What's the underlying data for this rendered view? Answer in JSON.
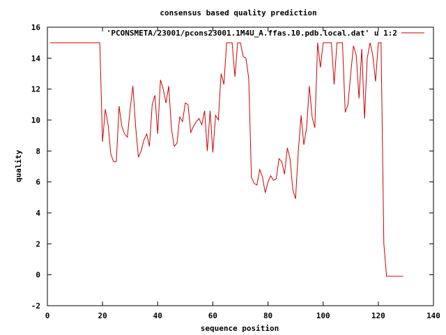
{
  "chart_data": {
    "type": "line",
    "title": "consensus based quality prediction",
    "xlabel": "sequence position",
    "ylabel": "quality",
    "xlim": [
      0,
      140
    ],
    "ylim": [
      -2,
      16
    ],
    "xticks": [
      0,
      20,
      40,
      60,
      80,
      100,
      120,
      140
    ],
    "yticks": [
      -2,
      0,
      2,
      4,
      6,
      8,
      10,
      12,
      14,
      16
    ],
    "grid": false,
    "legend": "top-right",
    "series": [
      {
        "name": "'PCONSMETA/23001/pcons23001.1M4U_A.ffas.10.pdb.local.dat' u 1:2",
        "color": "#cc0000",
        "x": [
          1,
          19,
          20,
          21,
          22,
          23,
          24,
          25,
          26,
          27,
          28,
          29,
          30,
          31,
          32,
          33,
          34,
          35,
          36,
          37,
          38,
          39,
          40,
          41,
          42,
          43,
          44,
          45,
          46,
          47,
          48,
          49,
          50,
          51,
          52,
          53,
          54,
          55,
          56,
          57,
          58,
          59,
          60,
          61,
          62,
          63,
          64,
          65,
          66,
          67,
          68,
          69,
          70,
          71,
          72,
          73,
          74,
          75,
          76,
          77,
          78,
          79,
          80,
          81,
          82,
          83,
          84,
          85,
          86,
          87,
          88,
          89,
          90,
          91,
          92,
          93,
          94,
          95,
          96,
          97,
          98,
          99,
          100,
          101,
          102,
          103,
          104,
          105,
          106,
          107,
          108,
          109,
          110,
          111,
          112,
          113,
          114,
          115,
          116,
          117,
          118,
          119,
          120,
          121,
          122,
          123,
          124,
          129
        ],
        "y": [
          15,
          15,
          8.6,
          10.7,
          9.7,
          7.8,
          7.3,
          7.3,
          10.9,
          9.6,
          9.1,
          8.9,
          10.7,
          12.2,
          9.6,
          7.6,
          8,
          8.7,
          9.1,
          8.3,
          11,
          11.6,
          9.1,
          12.6,
          12,
          11.1,
          12.2,
          9.4,
          8.3,
          8.5,
          10.2,
          9.9,
          11.1,
          11,
          9.2,
          9.6,
          9.9,
          10.1,
          9.7,
          10.6,
          8,
          10.6,
          7.9,
          10.3,
          10,
          13,
          12.3,
          15,
          15,
          15,
          12.8,
          15,
          15,
          14.1,
          14,
          12.7,
          6.3,
          5.9,
          5.8,
          6.8,
          6.3,
          5.3,
          6,
          6.4,
          6.1,
          6.2,
          7.5,
          7.3,
          6.5,
          8.2,
          7.5,
          5.5,
          4.9,
          8,
          10.3,
          8.4,
          9.5,
          12.2,
          10.2,
          9.5,
          15,
          13.4,
          15,
          15,
          15,
          15,
          12.3,
          15,
          15,
          15,
          10.5,
          11,
          13,
          14.8,
          14.2,
          11.4,
          14.6,
          10.1,
          14,
          15,
          14.2,
          12.5,
          15,
          15,
          2,
          -0.1,
          -0.1,
          -0.1
        ]
      }
    ]
  }
}
